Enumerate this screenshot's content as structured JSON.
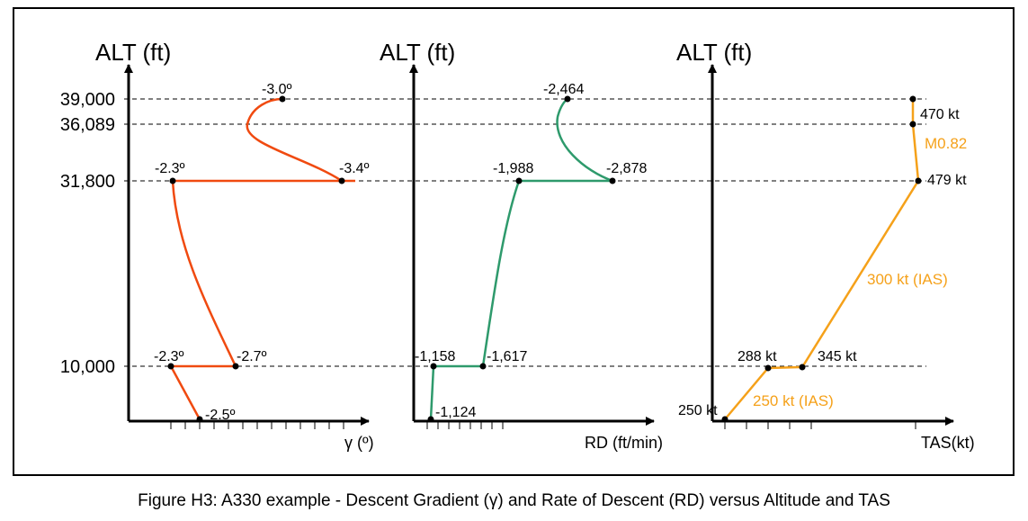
{
  "caption": "Figure H3: A330 example - Descent Gradient (γ) and Rate of Descent (RD) versus Altitude and TAS",
  "colors": {
    "gamma": "#f04a10",
    "rd": "#2e9a6c",
    "tas": "#f5a11a",
    "axis": "#000000",
    "gridline": "#000000"
  },
  "y_axis": {
    "title": "ALT (ft)",
    "ticks": [
      {
        "value": 39000,
        "label": "39,000"
      },
      {
        "value": 36089,
        "label": "36,089"
      },
      {
        "value": 31800,
        "label": "31,800"
      },
      {
        "value": 10000,
        "label": "10,000"
      }
    ]
  },
  "chart_data": [
    {
      "type": "line",
      "x_label": "γ (º)",
      "y_label": "ALT (ft)",
      "points": [
        {
          "alt": 0,
          "label": "-2.5º"
        },
        {
          "alt": 10000,
          "label": "-2.3º"
        },
        {
          "alt": 10000,
          "label": "-2.7º"
        },
        {
          "alt": 31800,
          "label": "-2.3º"
        },
        {
          "alt": 31800,
          "label": "-3.4º"
        },
        {
          "alt": 39000,
          "label": "-3.0º"
        }
      ]
    },
    {
      "type": "line",
      "x_label": "RD (ft/min)",
      "y_label": "ALT (ft)",
      "points": [
        {
          "alt": 0,
          "label": "-1,124"
        },
        {
          "alt": 10000,
          "label": "-1,158"
        },
        {
          "alt": 10000,
          "label": "-1,617"
        },
        {
          "alt": 31800,
          "label": "-1,988"
        },
        {
          "alt": 31800,
          "label": "-2,878"
        },
        {
          "alt": 39000,
          "label": "-2,464"
        }
      ]
    },
    {
      "type": "line",
      "x_label": "TAS(kt)",
      "y_label": "ALT (ft)",
      "points": [
        {
          "alt": 0,
          "label": "250 kt"
        },
        {
          "alt": 10000,
          "label": "288 kt"
        },
        {
          "alt": 10000,
          "label": "345 kt"
        },
        {
          "alt": 31800,
          "label": "479 kt"
        },
        {
          "alt": 36089,
          "label": ""
        },
        {
          "alt": 39000,
          "label": "470 kt"
        }
      ],
      "segment_labels": [
        "250 kt (IAS)",
        "300 kt (IAS)",
        "M0.82"
      ]
    }
  ]
}
